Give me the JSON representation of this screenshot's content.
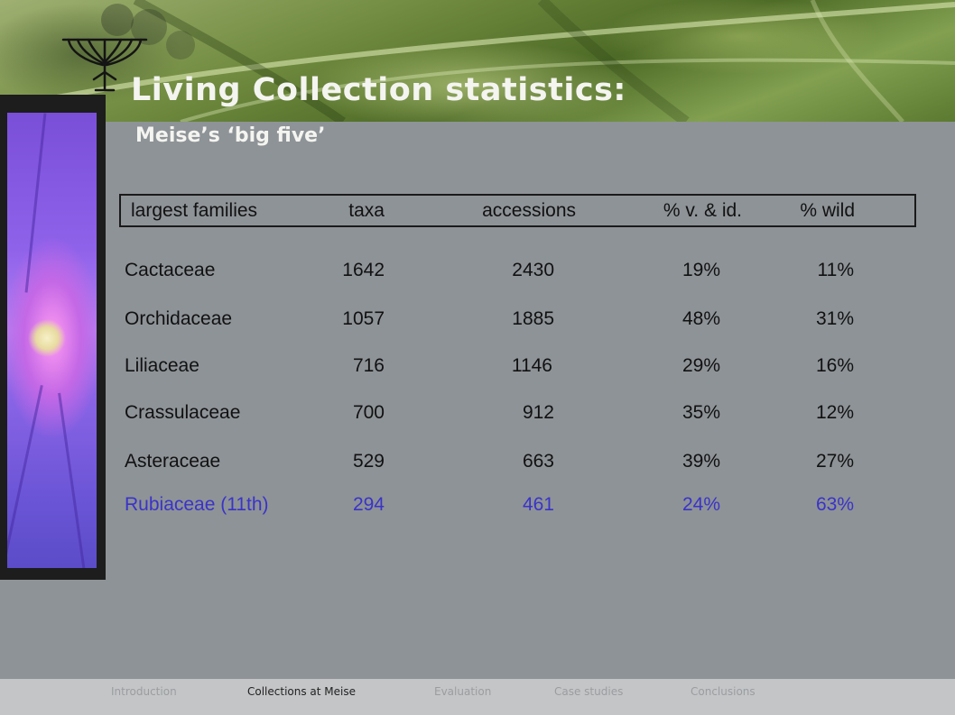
{
  "slide": {
    "title": "Living Collection statistics:",
    "subtitle": "Meise’s ‘big five’"
  },
  "table": {
    "headers": [
      "largest families",
      "taxa",
      "accessions",
      "% v. & id.",
      "% wild"
    ],
    "rows": [
      {
        "family": "Cactaceae",
        "taxa": "1642",
        "accessions": "2430",
        "vid": "19%",
        "wild": "11%",
        "highlight": false
      },
      {
        "family": "Orchidaceae",
        "taxa": "1057",
        "accessions": "1885",
        "vid": "48%",
        "wild": "31%",
        "highlight": false
      },
      {
        "family": "Liliaceae",
        "taxa": "716",
        "accessions": "1146",
        "vid": "29%",
        "wild": "16%",
        "highlight": false
      },
      {
        "family": "Crassulaceae",
        "taxa": "700",
        "accessions": "912",
        "vid": "35%",
        "wild": "12%",
        "highlight": false
      },
      {
        "family": "Asteraceae",
        "taxa": "529",
        "accessions": "663",
        "vid": "39%",
        "wild": "27%",
        "highlight": false
      },
      {
        "family": "Rubiaceae (11th)",
        "taxa": "294",
        "accessions": "461",
        "vid": "24%",
        "wild": "63%",
        "highlight": true
      }
    ],
    "highlight_color": "#3a33c8"
  },
  "footer": {
    "items": [
      "Introduction",
      "Collections at Meise",
      "Evaluation",
      "Case studies",
      "Conclusions"
    ],
    "active": "Collections at Meise"
  }
}
